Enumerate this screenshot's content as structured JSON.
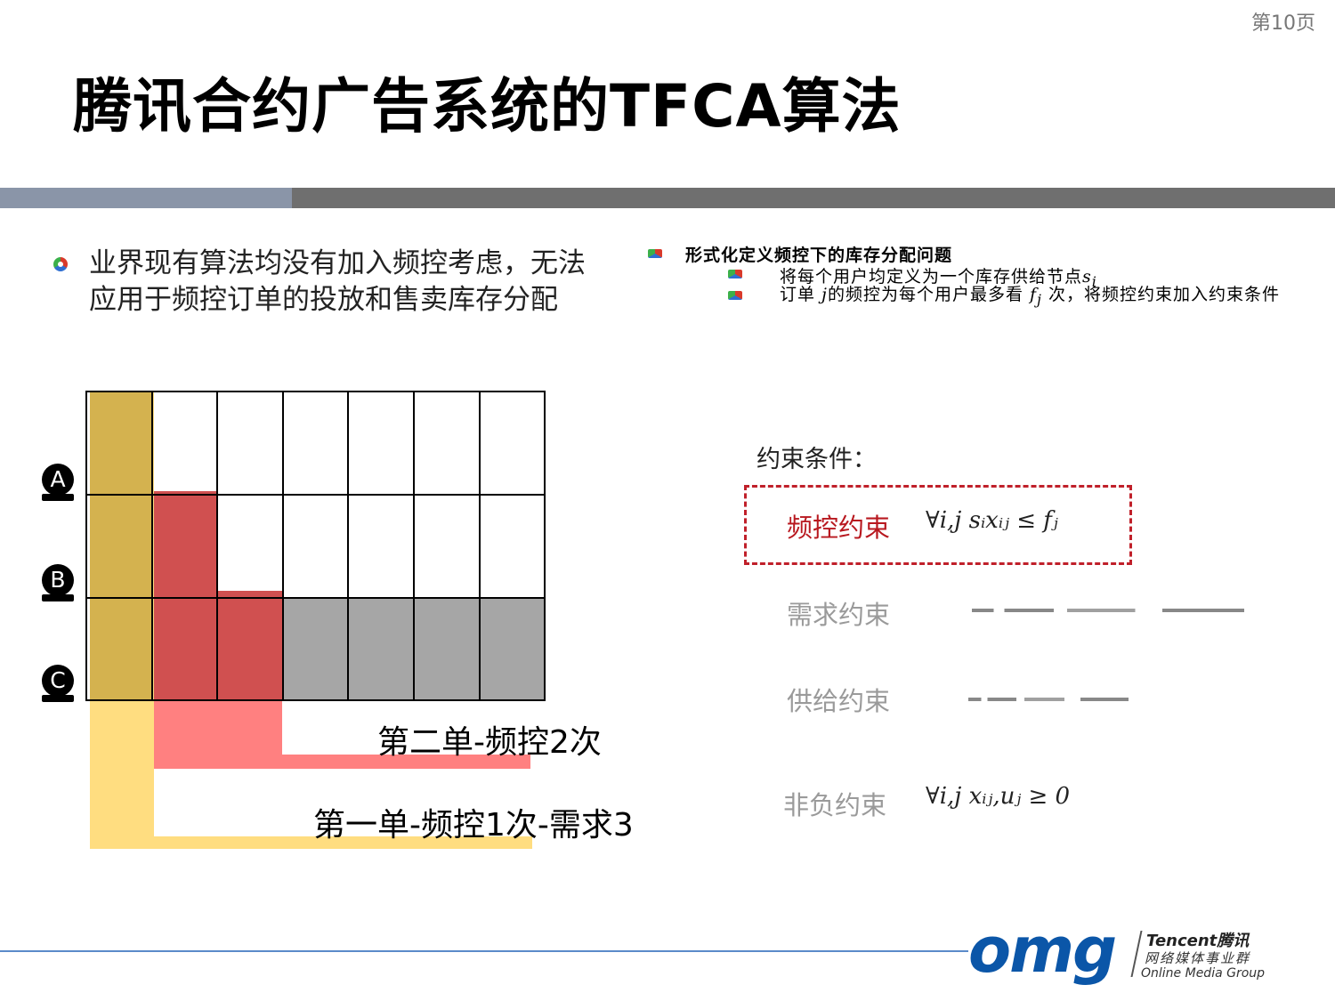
{
  "page_number": "第10页",
  "title": "腾讯合约广告系统的TFCA算法",
  "left_bullet": "业界现有算法均没有加入频控考虑，无法应用于频控订单的投放和售卖库存分配",
  "right_bullets": {
    "heading": "形式化定义频控下的库存分配问题",
    "sub1": "将每个用户均定义为一个库存供给节点",
    "sub1_math": "s",
    "sub1_math_sub": "i",
    "sub2_a": "订单 ",
    "sub2_math_j": "j",
    "sub2_b": "的频控为每个用户最多看 ",
    "sub2_math_f": "f",
    "sub2_math_f_sub": "j",
    "sub2_c": " 次，将频控约束加入约束条件"
  },
  "diagram": {
    "users": [
      "A",
      "B",
      "C"
    ],
    "order2_label": "第二单-频控2次",
    "order1_label": "第一单-频控1次-需求3",
    "colors": {
      "order1": "#d4b24f",
      "order1_light": "#ffdd80",
      "order2": "#d05050",
      "order2_light": "#ff8080",
      "gray": "#a6a6a6"
    }
  },
  "constraints": {
    "heading": "约束条件：",
    "freq": {
      "label": "频控约束",
      "formula": "∀i,j  sᵢxᵢⱼ ≤ fⱼ"
    },
    "demand": {
      "label": "需求约束"
    },
    "supply": {
      "label": "供给约束"
    },
    "nonneg": {
      "label": "非负约束",
      "formula": "∀i,j  xᵢⱼ,uⱼ ≥ 0"
    }
  },
  "logo": {
    "brand": "omg",
    "line1": "Tencent腾讯",
    "line2": "网络媒体事业群",
    "line3": "Online Media Group",
    "color": "#0b56a8"
  }
}
